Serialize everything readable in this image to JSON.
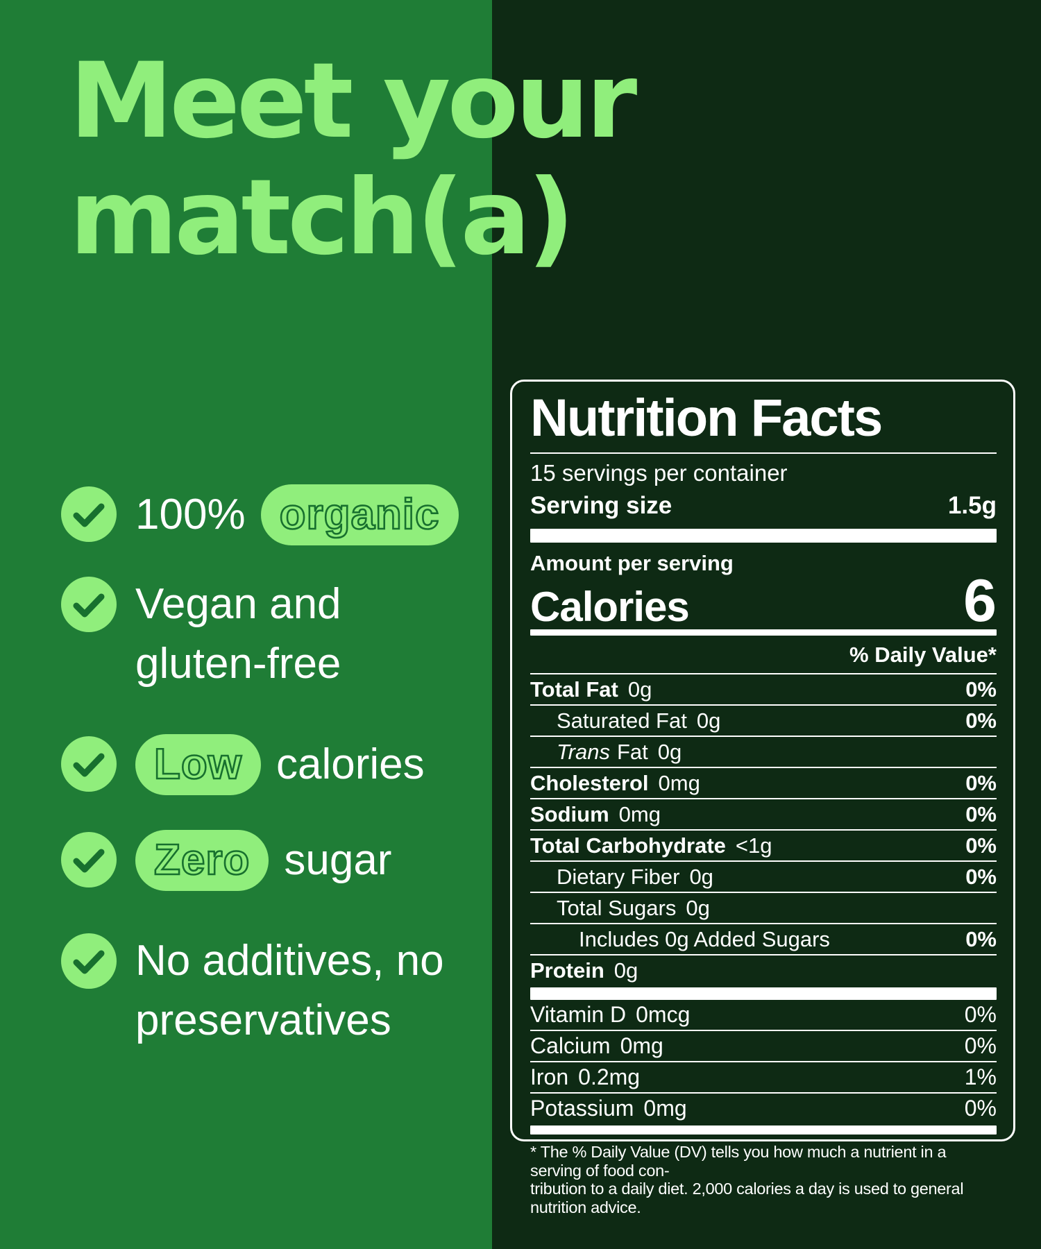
{
  "palette": {
    "left_background": "#1F7D36",
    "right_background": "#0E2A14",
    "accent_light_green": "#90EE7C",
    "checkmark_green": "#17702E",
    "text_white": "#FFFFFF"
  },
  "title": {
    "line1": "Meet your",
    "line2": "match(a)"
  },
  "checklist": {
    "items": [
      {
        "lines": [
          [
            {
              "t": "100%",
              "pill": false
            },
            {
              "t": "organic",
              "pill": true
            }
          ]
        ]
      },
      {
        "lines": [
          [
            {
              "t": "Vegan and",
              "pill": false
            }
          ],
          [
            {
              "t": "gluten-free",
              "pill": false
            }
          ]
        ]
      },
      {
        "lines": [
          [
            {
              "t": "Low",
              "pill": true
            },
            {
              "t": "calories",
              "pill": false
            }
          ]
        ]
      },
      {
        "lines": [
          [
            {
              "t": "Zero",
              "pill": true
            },
            {
              "t": "sugar",
              "pill": false
            }
          ]
        ]
      },
      {
        "lines": [
          [
            {
              "t": "No additives, no",
              "pill": false
            }
          ],
          [
            {
              "t": "preservatives",
              "pill": false
            }
          ]
        ]
      }
    ]
  },
  "nutrition": {
    "title": "Nutrition Facts",
    "servings_per_container": "15 servings per container",
    "serving_size_label": "Serving size",
    "serving_size_value": "1.5g",
    "amount_per_serving": "Amount per serving",
    "calories_label": "Calories",
    "calories_value": "6",
    "daily_value_header": "% Daily Value*",
    "rows": [
      {
        "name": "Total Fat",
        "amount": "0g",
        "dv": "0%",
        "bold": true,
        "indent": 0
      },
      {
        "name": "Saturated Fat",
        "amount": "0g",
        "dv": "0%",
        "bold": false,
        "indent": 1
      },
      {
        "name": "Fat",
        "italic": "Trans",
        "amount": "0g",
        "dv": "",
        "bold": false,
        "indent": 1
      },
      {
        "name": "Cholesterol",
        "amount": "0mg",
        "dv": "0%",
        "bold": true,
        "indent": 0
      },
      {
        "name": "Sodium",
        "amount": "0mg",
        "dv": "0%",
        "bold": true,
        "indent": 0
      },
      {
        "name": "Total Carbohydrate",
        "amount": "<1g",
        "dv": "0%",
        "bold": true,
        "indent": 0
      },
      {
        "name": "Dietary Fiber",
        "amount": "0g",
        "dv": "0%",
        "bold": false,
        "indent": 1
      },
      {
        "name": "Total Sugars",
        "amount": "0g",
        "dv": "",
        "bold": false,
        "indent": 1
      },
      {
        "name": "Includes 0g Added Sugars",
        "amount": "",
        "dv": "0%",
        "bold": false,
        "indent": 2
      },
      {
        "name": "Protein",
        "amount": "0g",
        "dv": "",
        "bold": true,
        "indent": 0
      }
    ],
    "micronutrients": [
      {
        "name": "Vitamin D",
        "amount": "0mcg",
        "dv": "0%"
      },
      {
        "name": "Calcium",
        "amount": "0mg",
        "dv": "0%"
      },
      {
        "name": "Iron",
        "amount": "0.2mg",
        "dv": "1%"
      },
      {
        "name": "Potassium",
        "amount": "0mg",
        "dv": "0%"
      }
    ],
    "footnote_line1": "* The % Daily Value (DV) tells you how much a nutrient in a serving of food con-",
    "footnote_line2": "tribution to a daily diet. 2,000 calories a day is used to general nutrition advice."
  }
}
